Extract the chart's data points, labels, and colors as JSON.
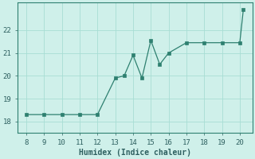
{
  "x": [
    8,
    9,
    10,
    11,
    12,
    13,
    13.5,
    14,
    14.5,
    15,
    15.5,
    16,
    17,
    18,
    19,
    20,
    20.2
  ],
  "y": [
    18.3,
    18.3,
    18.3,
    18.3,
    18.3,
    19.9,
    20.0,
    20.9,
    19.9,
    21.55,
    20.5,
    21.0,
    21.45,
    21.45,
    21.45,
    21.45,
    22.9
  ],
  "xlabel": "Humidex (Indice chaleur)",
  "ylabel": "",
  "xlim": [
    7.5,
    20.7
  ],
  "ylim": [
    17.5,
    23.2
  ],
  "yticks": [
    18,
    19,
    20,
    21,
    22
  ],
  "xticks": [
    8,
    9,
    10,
    11,
    12,
    13,
    14,
    15,
    16,
    17,
    18,
    19,
    20
  ],
  "line_color": "#2e8070",
  "marker_color": "#2e8070",
  "bg_color": "#cff0ea",
  "grid_color": "#a8ddd4",
  "axis_color": "#2e8070",
  "font_color": "#2e6060",
  "tick_fontsize": 6.5,
  "xlabel_fontsize": 7.0
}
